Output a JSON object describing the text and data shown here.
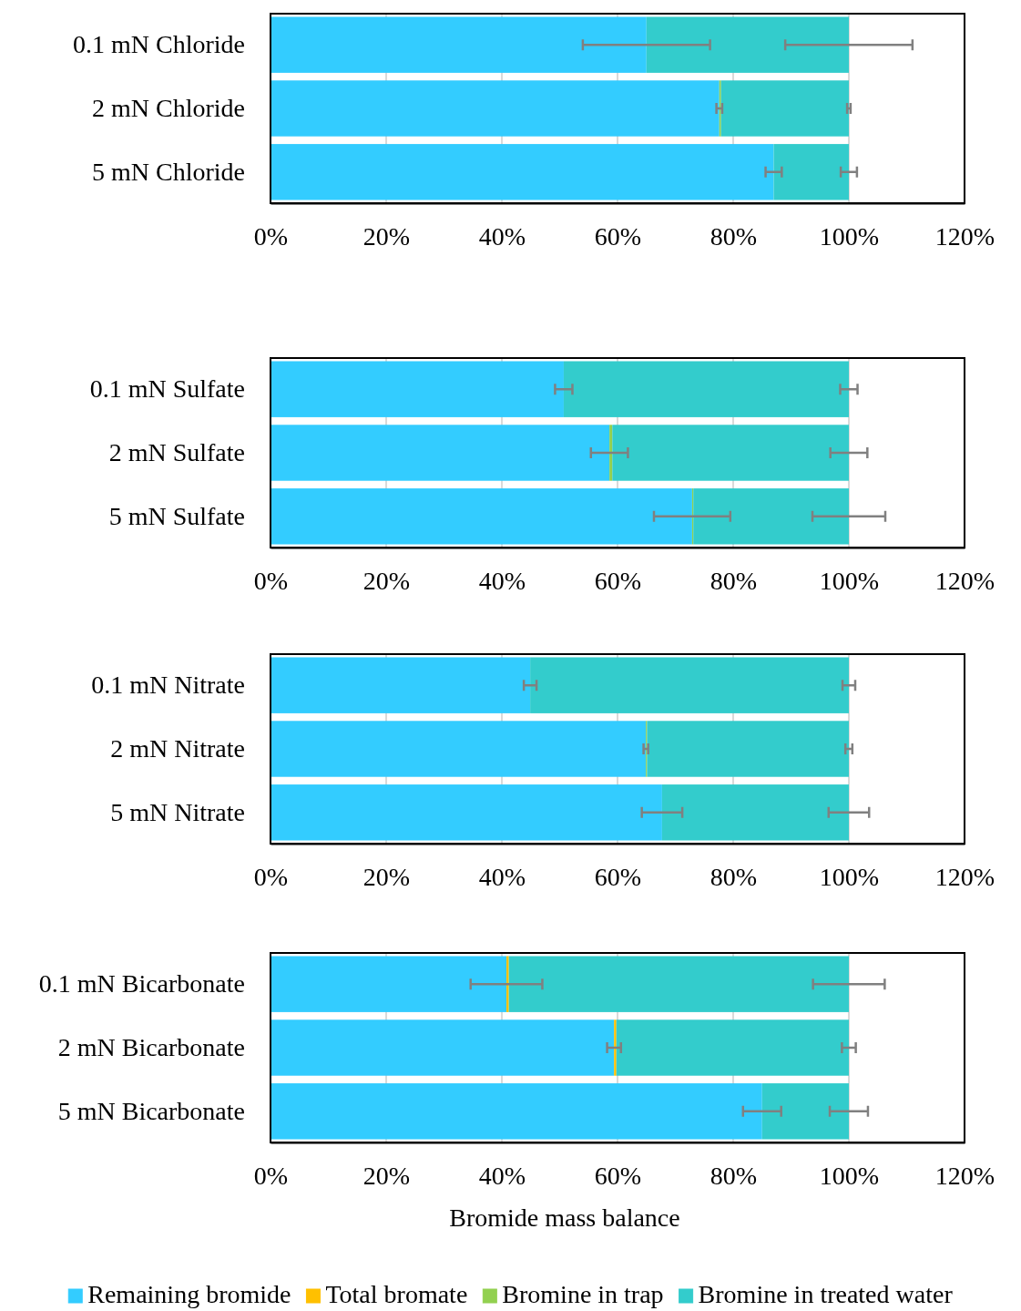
{
  "chart_data": [
    {
      "type": "bar",
      "orientation": "horizontal",
      "stacked": true,
      "categories": [
        "0.1 mN Chloride",
        "2 mN Chloride",
        "5 mN Chloride"
      ],
      "xlim": [
        0,
        120
      ],
      "xticks": [
        {
          "value": 0,
          "label": "0%"
        },
        {
          "value": 20,
          "label": "20%"
        },
        {
          "value": 40,
          "label": "40%"
        },
        {
          "value": 60,
          "label": "60%"
        },
        {
          "value": 80,
          "label": "80%"
        },
        {
          "value": 100,
          "label": "100%"
        },
        {
          "value": 120,
          "label": "120%"
        }
      ],
      "grid": "x",
      "legend": false,
      "series": [
        {
          "color": "#33ccff",
          "values": [
            65,
            77.6,
            87
          ],
          "errors": [
            11,
            0.5,
            1.4
          ]
        },
        {
          "color": "#92d050",
          "values": [
            null,
            0.3,
            null
          ]
        },
        {
          "color": "#33cccc",
          "values": [
            35,
            22.1,
            13
          ],
          "errors": [
            11,
            0.3,
            1.4
          ]
        }
      ]
    },
    {
      "type": "bar",
      "orientation": "horizontal",
      "stacked": true,
      "categories": [
        "0.1 mN Sulfate",
        "2 mN Sulfate",
        "5 mN Sulfate"
      ],
      "xlim": [
        0,
        120
      ],
      "xticks": [
        {
          "value": 0,
          "label": "0%"
        },
        {
          "value": 20,
          "label": "20%"
        },
        {
          "value": 40,
          "label": "40%"
        },
        {
          "value": 60,
          "label": "60%"
        },
        {
          "value": 80,
          "label": "80%"
        },
        {
          "value": 100,
          "label": "100%"
        },
        {
          "value": 120,
          "label": "120%"
        }
      ],
      "grid": "x",
      "legend": false,
      "series": [
        {
          "color": "#33ccff",
          "values": [
            50.7,
            58.6,
            72.9
          ],
          "errors": [
            1.5,
            3.2,
            6.6
          ]
        },
        {
          "color": "#92d050",
          "values": [
            null,
            0.5,
            0.2
          ]
        },
        {
          "color": "#33cccc",
          "values": [
            49.3,
            40.9,
            26.9
          ],
          "errors": [
            1.5,
            3.2,
            6.3
          ]
        }
      ]
    },
    {
      "type": "bar",
      "orientation": "horizontal",
      "stacked": true,
      "categories": [
        "0.1 mN Nitrate",
        "2 mN Nitrate",
        "5 mN Nitrate"
      ],
      "xlim": [
        0,
        120
      ],
      "xticks": [
        {
          "value": 0,
          "label": "0%"
        },
        {
          "value": 20,
          "label": "20%"
        },
        {
          "value": 40,
          "label": "40%"
        },
        {
          "value": 60,
          "label": "60%"
        },
        {
          "value": 80,
          "label": "80%"
        },
        {
          "value": 100,
          "label": "100%"
        },
        {
          "value": 120,
          "label": "120%"
        }
      ],
      "grid": "x",
      "legend": false,
      "series": [
        {
          "color": "#33ccff",
          "values": [
            44.9,
            64.9,
            67.7
          ],
          "errors": [
            1.1,
            0.4,
            3.5
          ]
        },
        {
          "color": "#92d050",
          "values": [
            null,
            0.2,
            null
          ]
        },
        {
          "color": "#33cccc",
          "values": [
            55.1,
            34.9,
            32.3
          ],
          "errors": [
            1.1,
            0.6,
            3.5
          ]
        }
      ]
    },
    {
      "type": "bar",
      "orientation": "horizontal",
      "stacked": true,
      "categories": [
        "0.1 mN Bicarbonate",
        "2 mN Bicarbonate",
        "5 mN Bicarbonate"
      ],
      "xlim": [
        0,
        120
      ],
      "xticks": [
        {
          "value": 0,
          "label": "0%"
        },
        {
          "value": 20,
          "label": "20%"
        },
        {
          "value": 40,
          "label": "40%"
        },
        {
          "value": 60,
          "label": "60%"
        },
        {
          "value": 80,
          "label": "80%"
        },
        {
          "value": 100,
          "label": "100%"
        },
        {
          "value": 120,
          "label": "120%"
        }
      ],
      "xlabel": "Bromide mass balance",
      "grid": "x",
      "legend": "bottom",
      "series": [
        {
          "name": "Remaining bromide",
          "color": "#33ccff",
          "values": [
            40.8,
            59.4,
            85
          ],
          "errors": [
            6.2,
            1.2,
            3.3
          ]
        },
        {
          "name": "Total bromate",
          "color": "#ffc000",
          "values": [
            0.4,
            0.4,
            null
          ]
        },
        {
          "name": "Bromine in trap",
          "color": "#92d050",
          "values": [
            null,
            null,
            null
          ]
        },
        {
          "name": "Bromine in treated water",
          "color": "#33cccc",
          "values": [
            58.8,
            40.2,
            15
          ],
          "errors": [
            6.2,
            1.2,
            3.3
          ]
        }
      ]
    }
  ]
}
